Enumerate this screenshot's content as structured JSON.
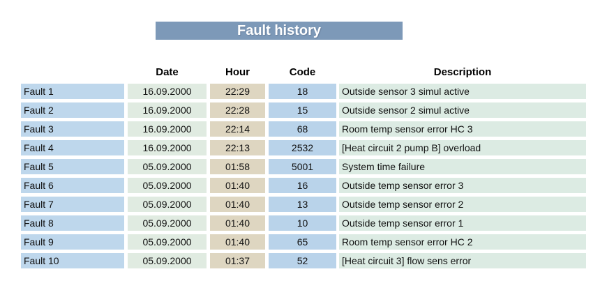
{
  "title": "Fault history",
  "colors": {
    "title_bg": "#7d99b8",
    "fault_bg": "#bed7ec",
    "date_bg": "#e0ebe1",
    "hour_bg": "#ded6c1",
    "code_bg": "#b9d3ea",
    "desc_bg": "#dcebe3"
  },
  "table": {
    "headers": {
      "date": "Date",
      "hour": "Hour",
      "code": "Code",
      "description": "Description"
    },
    "rows": [
      {
        "fault": "Fault 1",
        "date": "16.09.2000",
        "hour": "22:29",
        "code": "18",
        "description": "Outside sensor 3 simul active"
      },
      {
        "fault": "Fault 2",
        "date": "16.09.2000",
        "hour": "22:28",
        "code": "15",
        "description": "Outside sensor 2 simul active"
      },
      {
        "fault": "Fault 3",
        "date": "16.09.2000",
        "hour": "22:14",
        "code": "68",
        "description": "Room temp sensor error HC 3"
      },
      {
        "fault": "Fault 4",
        "date": "16.09.2000",
        "hour": "22:13",
        "code": "2532",
        "description": "[Heat circuit 2 pump B] overload"
      },
      {
        "fault": "Fault 5",
        "date": "05.09.2000",
        "hour": "01:58",
        "code": "5001",
        "description": "System time failure"
      },
      {
        "fault": "Fault 6",
        "date": "05.09.2000",
        "hour": "01:40",
        "code": "16",
        "description": "Outside temp sensor error 3"
      },
      {
        "fault": "Fault 7",
        "date": "05.09.2000",
        "hour": "01:40",
        "code": "13",
        "description": "Outside temp sensor error 2"
      },
      {
        "fault": "Fault 8",
        "date": "05.09.2000",
        "hour": "01:40",
        "code": "10",
        "description": "Outside temp sensor error 1"
      },
      {
        "fault": "Fault 9",
        "date": "05.09.2000",
        "hour": "01:40",
        "code": "65",
        "description": "Room temp sensor error HC 2"
      },
      {
        "fault": "Fault 10",
        "date": "05.09.2000",
        "hour": "01:37",
        "code": "52",
        "description": "[Heat circuit 3] flow sens error"
      }
    ]
  }
}
